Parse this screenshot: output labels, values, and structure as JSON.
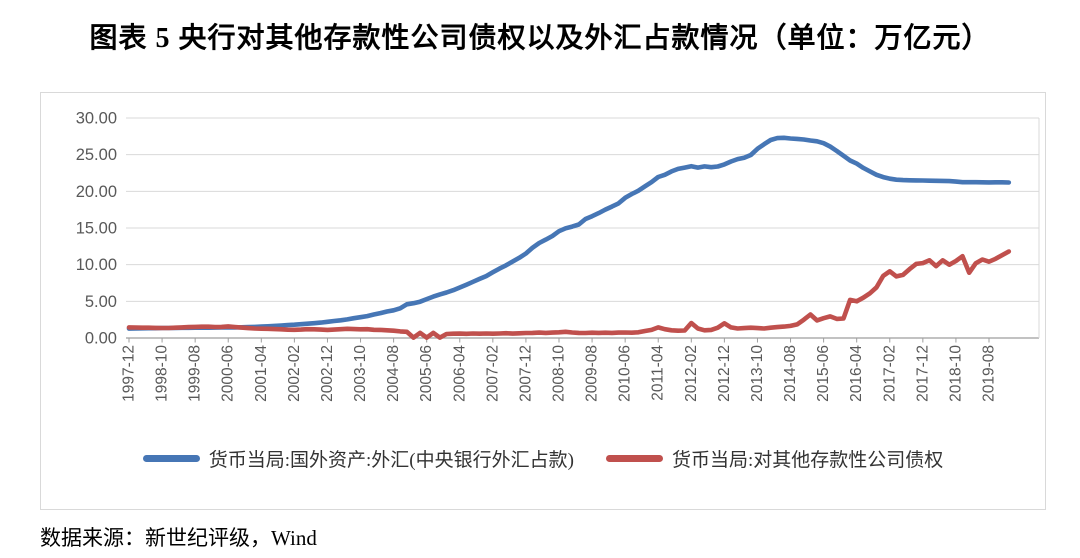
{
  "title": "图表 5  央行对其他存款性公司债权以及外汇占款情况（单位：万亿元）",
  "source": "数据来源：新世纪评级，Wind",
  "colors": {
    "fx_line": "#4676b5",
    "claims_line": "#c0504d",
    "grid": "#d9d9d9",
    "axis": "#9e9e9e",
    "tick_text": "#595959"
  },
  "chart_data": {
    "type": "line",
    "title": "央行对其他存款性公司债权以及外汇占款情况",
    "unit": "万亿元",
    "ylim": [
      0,
      30
    ],
    "y_tick_labels": [
      "0.00",
      "5.00",
      "10.00",
      "15.00",
      "20.00",
      "25.00",
      "30.00"
    ],
    "grid": true,
    "legend_position": "bottom",
    "x_start": "1997-12",
    "x_step_months": 2,
    "x_tick_every_months": 10,
    "x_tick_labels": [
      "1997-12",
      "1998-10",
      "1999-08",
      "2000-06",
      "2001-04",
      "2002-02",
      "2002-12",
      "2003-10",
      "2004-08",
      "2005-06",
      "2006-04",
      "2007-02",
      "2007-12",
      "2008-10",
      "2009-08",
      "2010-06",
      "2011-04",
      "2012-02",
      "2012-12",
      "2013-10",
      "2014-08",
      "2015-06",
      "2016-04",
      "2017-02",
      "2017-12",
      "2018-10",
      "2019-08"
    ],
    "series": [
      {
        "name": "货币当局:国外资产:外汇(中央银行外汇占款)",
        "color": "#4676b5",
        "values": [
          1.28,
          1.3,
          1.32,
          1.33,
          1.34,
          1.36,
          1.37,
          1.38,
          1.39,
          1.39,
          1.4,
          1.4,
          1.41,
          1.42,
          1.43,
          1.44,
          1.45,
          1.46,
          1.48,
          1.51,
          1.55,
          1.6,
          1.65,
          1.71,
          1.77,
          1.82,
          1.88,
          1.95,
          2.02,
          2.1,
          2.21,
          2.32,
          2.42,
          2.54,
          2.7,
          2.83,
          2.98,
          3.2,
          3.4,
          3.61,
          3.78,
          4.05,
          4.59,
          4.75,
          4.95,
          5.3,
          5.65,
          5.94,
          6.21,
          6.52,
          6.89,
          7.27,
          7.67,
          8.06,
          8.44,
          8.96,
          9.46,
          9.91,
          10.43,
          10.93,
          11.52,
          12.3,
          12.96,
          13.42,
          13.91,
          14.56,
          14.96,
          15.19,
          15.48,
          16.23,
          16.61,
          17.03,
          17.51,
          17.92,
          18.35,
          19.12,
          19.64,
          20.09,
          20.68,
          21.26,
          21.96,
          22.26,
          22.72,
          23.06,
          23.24,
          23.43,
          23.24,
          23.4,
          23.29,
          23.38,
          23.67,
          24.07,
          24.39,
          24.58,
          24.96,
          25.8,
          26.43,
          27.0,
          27.26,
          27.3,
          27.2,
          27.15,
          27.07,
          26.93,
          26.82,
          26.57,
          26.1,
          25.5,
          24.85,
          24.2,
          23.78,
          23.2,
          22.72,
          22.26,
          21.94,
          21.72,
          21.59,
          21.53,
          21.51,
          21.49,
          21.48,
          21.45,
          21.43,
          21.42,
          21.39,
          21.33,
          21.25,
          21.24,
          21.25,
          21.23,
          21.22,
          21.23,
          21.23,
          21.2
        ]
      },
      {
        "name": "货币当局:对其他存款性公司债权",
        "color": "#c0504d",
        "values": [
          1.44,
          1.43,
          1.41,
          1.4,
          1.38,
          1.37,
          1.37,
          1.4,
          1.44,
          1.48,
          1.52,
          1.54,
          1.54,
          1.5,
          1.52,
          1.58,
          1.5,
          1.42,
          1.35,
          1.3,
          1.27,
          1.25,
          1.22,
          1.18,
          1.13,
          1.12,
          1.15,
          1.2,
          1.18,
          1.14,
          1.1,
          1.15,
          1.2,
          1.25,
          1.22,
          1.18,
          1.2,
          1.12,
          1.1,
          1.05,
          1.0,
          0.9,
          0.85,
          0.05,
          0.7,
          0.05,
          0.7,
          0.05,
          0.55,
          0.58,
          0.6,
          0.57,
          0.62,
          0.58,
          0.62,
          0.58,
          0.62,
          0.65,
          0.6,
          0.64,
          0.68,
          0.7,
          0.74,
          0.7,
          0.73,
          0.78,
          0.84,
          0.75,
          0.7,
          0.68,
          0.72,
          0.7,
          0.72,
          0.7,
          0.73,
          0.75,
          0.72,
          0.78,
          0.95,
          1.1,
          1.45,
          1.2,
          1.05,
          1.0,
          1.02,
          2.05,
          1.3,
          1.05,
          1.1,
          1.4,
          2.0,
          1.45,
          1.3,
          1.35,
          1.4,
          1.35,
          1.3,
          1.4,
          1.48,
          1.55,
          1.65,
          1.85,
          2.5,
          3.2,
          2.4,
          2.7,
          2.95,
          2.6,
          2.66,
          5.2,
          5.0,
          5.5,
          6.1,
          6.9,
          8.47,
          9.1,
          8.4,
          8.6,
          9.4,
          10.1,
          10.22,
          10.6,
          9.8,
          10.6,
          10.0,
          10.5,
          11.15,
          8.9,
          10.2,
          10.7,
          10.4,
          10.8,
          11.3,
          11.8
        ]
      }
    ]
  }
}
